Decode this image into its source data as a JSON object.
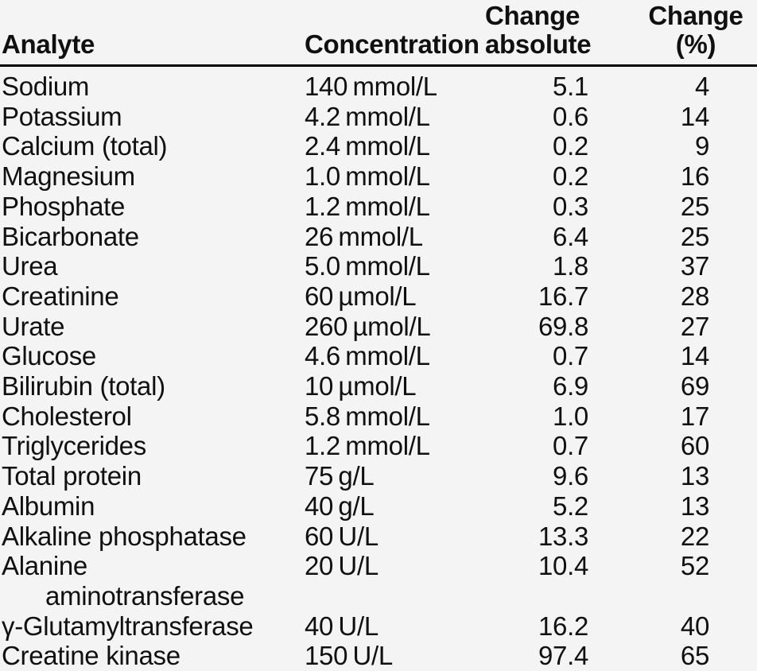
{
  "page": {
    "background_color": "#f4f4f4",
    "text_color": "#101010",
    "rule_color": "#000000"
  },
  "table": {
    "columns": [
      {
        "id": "analyte",
        "label": "Analyte"
      },
      {
        "id": "concentration",
        "label": "Concentration"
      },
      {
        "id": "change_absolute",
        "line1": "Change",
        "line2": "absolute"
      },
      {
        "id": "change_percent",
        "line1": "Change",
        "line2": "(%)"
      }
    ],
    "rows": [
      {
        "analyte": "Sodium",
        "concentration": "140 mmol/L",
        "change_absolute": "5.1",
        "change_percent": "4"
      },
      {
        "analyte": "Potassium",
        "concentration": "4.2 mmol/L",
        "change_absolute": "0.6",
        "change_percent": "14"
      },
      {
        "analyte": "Calcium (total)",
        "concentration": "2.4 mmol/L",
        "change_absolute": "0.2",
        "change_percent": "9"
      },
      {
        "analyte": "Magnesium",
        "concentration": "1.0 mmol/L",
        "change_absolute": "0.2",
        "change_percent": "16"
      },
      {
        "analyte": "Phosphate",
        "concentration": "1.2 mmol/L",
        "change_absolute": "0.3",
        "change_percent": "25"
      },
      {
        "analyte": "Bicarbonate",
        "concentration": "26 mmol/L",
        "change_absolute": "6.4",
        "change_percent": "25"
      },
      {
        "analyte": "Urea",
        "concentration": "5.0 mmol/L",
        "change_absolute": "1.8",
        "change_percent": "37"
      },
      {
        "analyte": "Creatinine",
        "concentration": "60 µmol/L",
        "change_absolute": "16.7",
        "change_percent": "28"
      },
      {
        "analyte": "Urate",
        "concentration": "260 µmol/L",
        "change_absolute": "69.8",
        "change_percent": "27"
      },
      {
        "analyte": "Glucose",
        "concentration": "4.6 mmol/L",
        "change_absolute": "0.7",
        "change_percent": "14"
      },
      {
        "analyte": "Bilirubin (total)",
        "concentration": "10 µmol/L",
        "change_absolute": "6.9",
        "change_percent": "69"
      },
      {
        "analyte": "Cholesterol",
        "concentration": "5.8 mmol/L",
        "change_absolute": "1.0",
        "change_percent": "17"
      },
      {
        "analyte": "Triglycerides",
        "concentration": "1.2 mmol/L",
        "change_absolute": "0.7",
        "change_percent": "60"
      },
      {
        "analyte": "Total protein",
        "concentration": "75 g/L",
        "change_absolute": "9.6",
        "change_percent": "13"
      },
      {
        "analyte": "Albumin",
        "concentration": "40 g/L",
        "change_absolute": "5.2",
        "change_percent": "13"
      },
      {
        "analyte": "Alkaline phosphatase",
        "concentration": "60 U/L",
        "change_absolute": "13.3",
        "change_percent": "22"
      },
      {
        "analyte": "Alanine",
        "analyte_line2": "aminotransferase",
        "concentration": "20 U/L",
        "change_absolute": "10.4",
        "change_percent": "52"
      },
      {
        "analyte": "γ-Glutamyltransferase",
        "concentration": "40 U/L",
        "change_absolute": "16.2",
        "change_percent": "40"
      },
      {
        "analyte": "Creatine kinase",
        "concentration": "150 U/L",
        "change_absolute": "97.4",
        "change_percent": "65"
      }
    ]
  }
}
